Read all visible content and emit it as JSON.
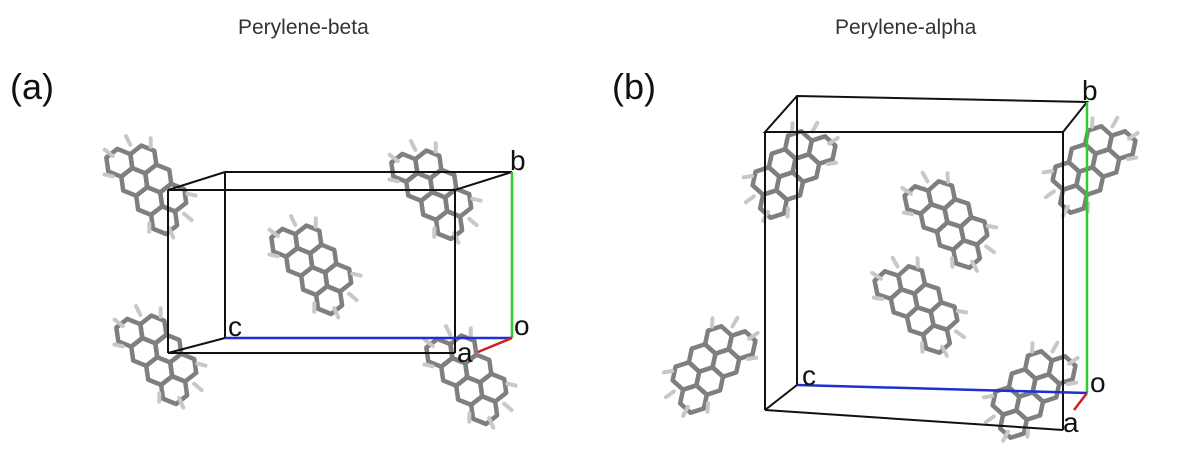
{
  "panels": [
    {
      "label": "(a)",
      "title": "Perylene-beta",
      "axes": {
        "b": "b",
        "o": "o",
        "c": "c",
        "a": "a"
      }
    },
    {
      "label": "(b)",
      "title": "Perylene-alpha",
      "axes": {
        "b": "b",
        "o": "o",
        "c": "c",
        "a": "a"
      }
    }
  ],
  "colors": {
    "b_axis": "#2ecc2e",
    "c_axis": "#1f2fd0",
    "a_axis": "#d02020",
    "cell_edges": "#111111",
    "carbon_bonds": "#7f7f7f",
    "hydrogen_bonds": "#c8c8c8"
  }
}
